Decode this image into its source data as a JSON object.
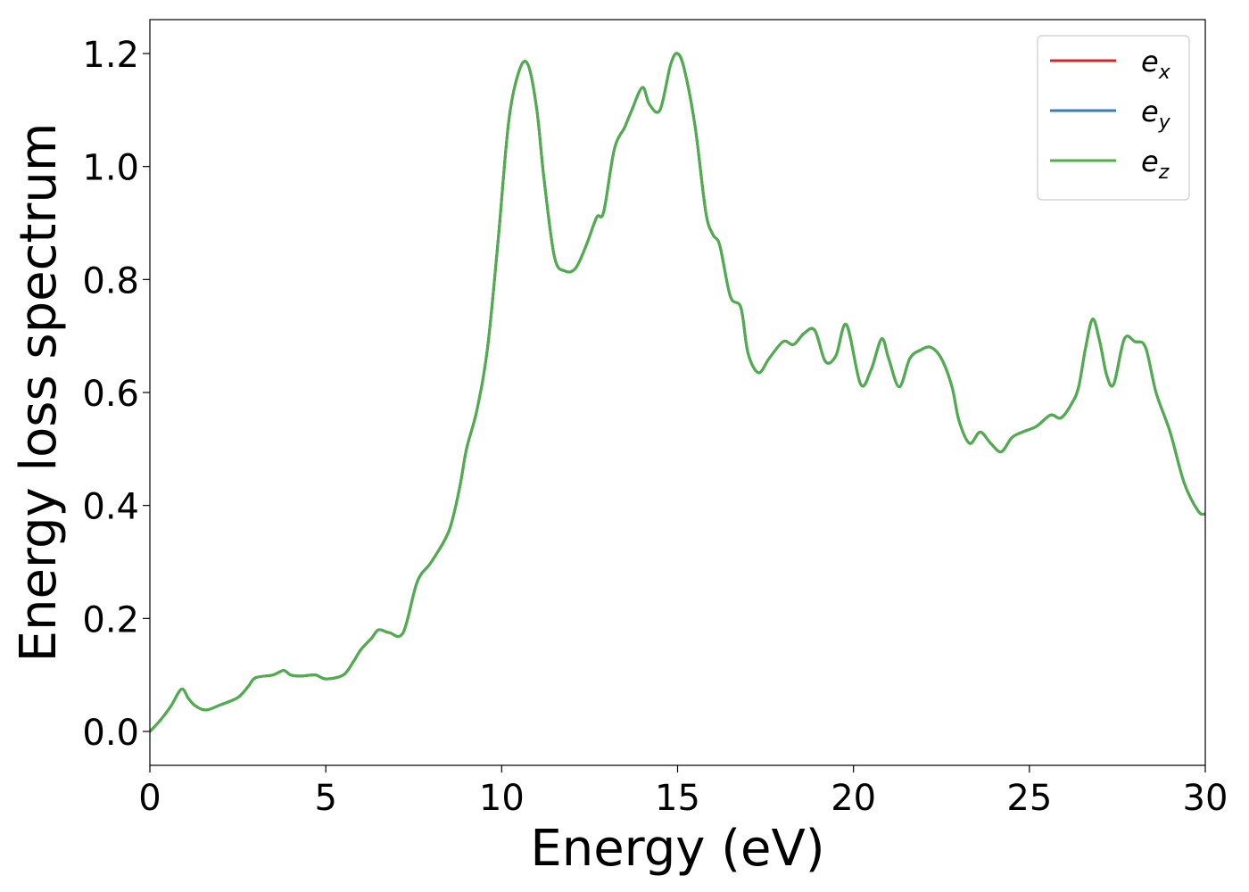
{
  "chart_data": {
    "type": "line",
    "title": "",
    "xlabel": "Energy (eV)",
    "ylabel": "Energy loss spectrum",
    "xlim": [
      0,
      30
    ],
    "ylim": [
      -0.06,
      1.26
    ],
    "xticks": [
      0,
      5,
      10,
      15,
      20,
      25,
      30
    ],
    "xtick_labels": [
      "0",
      "5",
      "10",
      "15",
      "20",
      "25",
      "30"
    ],
    "yticks": [
      0.0,
      0.2,
      0.4,
      0.6,
      0.8,
      1.0,
      1.2
    ],
    "ytick_labels": [
      "0.0",
      "0.2",
      "0.4",
      "0.6",
      "0.8",
      "1.0",
      "1.2"
    ],
    "grid": false,
    "legend": {
      "position": "top-right"
    },
    "x": [
      0,
      0.3,
      0.6,
      0.9,
      1.1,
      1.3,
      1.6,
      2.0,
      2.5,
      2.8,
      3.0,
      3.5,
      3.8,
      4.0,
      4.3,
      4.7,
      5.0,
      5.5,
      5.8,
      6.0,
      6.3,
      6.5,
      6.8,
      7.2,
      7.6,
      8.0,
      8.5,
      8.8,
      9.0,
      9.3,
      9.6,
      9.9,
      10.2,
      10.5,
      10.75,
      11.0,
      11.2,
      11.5,
      11.8,
      12.1,
      12.4,
      12.7,
      12.9,
      13.2,
      13.5,
      13.7,
      14.0,
      14.2,
      14.5,
      14.8,
      15.0,
      15.2,
      15.5,
      15.8,
      16.0,
      16.2,
      16.5,
      16.8,
      17.0,
      17.3,
      17.6,
      18.0,
      18.3,
      18.6,
      18.9,
      19.2,
      19.5,
      19.8,
      20.2,
      20.5,
      20.8,
      21.0,
      21.3,
      21.6,
      21.9,
      22.2,
      22.5,
      22.8,
      23.0,
      23.3,
      23.6,
      23.9,
      24.2,
      24.5,
      24.8,
      25.2,
      25.6,
      25.9,
      26.2,
      26.4,
      26.6,
      26.8,
      27.0,
      27.2,
      27.4,
      27.7,
      28.0,
      28.3,
      28.6,
      29.0,
      29.4,
      29.8,
      30.0
    ],
    "series": [
      {
        "name": "e_x",
        "label_base": "e",
        "label_sub": "x",
        "color": "#d62728",
        "values": [
          0.0,
          0.02,
          0.045,
          0.075,
          0.058,
          0.045,
          0.038,
          0.047,
          0.06,
          0.08,
          0.095,
          0.1,
          0.108,
          0.1,
          0.098,
          0.1,
          0.093,
          0.1,
          0.125,
          0.145,
          0.165,
          0.18,
          0.175,
          0.175,
          0.265,
          0.3,
          0.355,
          0.43,
          0.5,
          0.57,
          0.68,
          0.87,
          1.08,
          1.17,
          1.18,
          1.1,
          0.98,
          0.84,
          0.815,
          0.82,
          0.86,
          0.91,
          0.92,
          1.03,
          1.07,
          1.1,
          1.14,
          1.11,
          1.1,
          1.18,
          1.2,
          1.17,
          1.07,
          0.92,
          0.88,
          0.86,
          0.77,
          0.75,
          0.67,
          0.635,
          0.66,
          0.69,
          0.685,
          0.705,
          0.71,
          0.655,
          0.665,
          0.72,
          0.615,
          0.64,
          0.695,
          0.66,
          0.61,
          0.66,
          0.675,
          0.68,
          0.66,
          0.61,
          0.55,
          0.51,
          0.53,
          0.51,
          0.495,
          0.52,
          0.53,
          0.54,
          0.56,
          0.555,
          0.58,
          0.61,
          0.68,
          0.73,
          0.69,
          0.63,
          0.615,
          0.695,
          0.69,
          0.68,
          0.6,
          0.53,
          0.44,
          0.39,
          0.385
        ]
      },
      {
        "name": "e_y",
        "label_base": "e",
        "label_sub": "y",
        "color": "#377eb8",
        "values": [
          0.0,
          0.02,
          0.045,
          0.075,
          0.058,
          0.045,
          0.038,
          0.047,
          0.06,
          0.08,
          0.095,
          0.1,
          0.108,
          0.1,
          0.098,
          0.1,
          0.093,
          0.1,
          0.125,
          0.145,
          0.165,
          0.18,
          0.175,
          0.175,
          0.265,
          0.3,
          0.355,
          0.43,
          0.5,
          0.57,
          0.68,
          0.87,
          1.08,
          1.17,
          1.18,
          1.1,
          0.98,
          0.84,
          0.815,
          0.82,
          0.86,
          0.91,
          0.92,
          1.03,
          1.07,
          1.1,
          1.14,
          1.11,
          1.1,
          1.18,
          1.2,
          1.17,
          1.07,
          0.92,
          0.88,
          0.86,
          0.77,
          0.75,
          0.67,
          0.635,
          0.66,
          0.69,
          0.685,
          0.705,
          0.71,
          0.655,
          0.665,
          0.72,
          0.615,
          0.64,
          0.695,
          0.66,
          0.61,
          0.66,
          0.675,
          0.68,
          0.66,
          0.61,
          0.55,
          0.51,
          0.53,
          0.51,
          0.495,
          0.52,
          0.53,
          0.54,
          0.56,
          0.555,
          0.58,
          0.61,
          0.68,
          0.73,
          0.69,
          0.63,
          0.615,
          0.695,
          0.69,
          0.68,
          0.6,
          0.53,
          0.44,
          0.39,
          0.385
        ]
      },
      {
        "name": "e_z",
        "label_base": "e",
        "label_sub": "z",
        "color": "#4daf4a",
        "values": [
          0.0,
          0.02,
          0.045,
          0.075,
          0.058,
          0.045,
          0.038,
          0.047,
          0.06,
          0.08,
          0.095,
          0.1,
          0.108,
          0.1,
          0.098,
          0.1,
          0.093,
          0.1,
          0.125,
          0.145,
          0.165,
          0.18,
          0.175,
          0.175,
          0.265,
          0.3,
          0.355,
          0.43,
          0.5,
          0.57,
          0.68,
          0.87,
          1.08,
          1.17,
          1.18,
          1.1,
          0.98,
          0.84,
          0.815,
          0.82,
          0.86,
          0.91,
          0.92,
          1.03,
          1.07,
          1.1,
          1.14,
          1.11,
          1.1,
          1.18,
          1.2,
          1.17,
          1.07,
          0.92,
          0.88,
          0.86,
          0.77,
          0.75,
          0.67,
          0.635,
          0.66,
          0.69,
          0.685,
          0.705,
          0.71,
          0.655,
          0.665,
          0.72,
          0.615,
          0.64,
          0.695,
          0.66,
          0.61,
          0.66,
          0.675,
          0.68,
          0.66,
          0.61,
          0.55,
          0.51,
          0.53,
          0.51,
          0.495,
          0.52,
          0.53,
          0.54,
          0.56,
          0.555,
          0.58,
          0.61,
          0.68,
          0.73,
          0.69,
          0.63,
          0.615,
          0.695,
          0.69,
          0.68,
          0.6,
          0.53,
          0.44,
          0.39,
          0.385
        ]
      }
    ]
  }
}
